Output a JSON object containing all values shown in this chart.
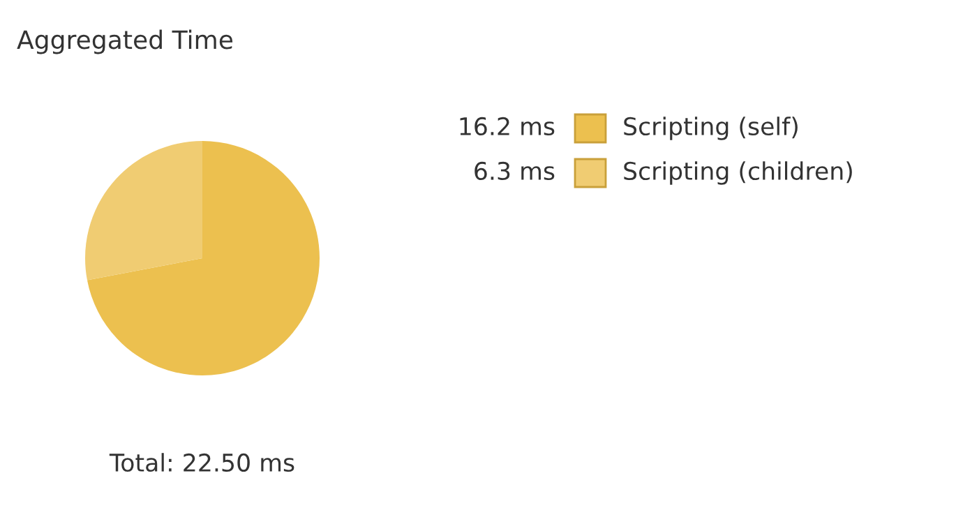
{
  "chart_data": {
    "type": "pie",
    "title": "Aggregated Time",
    "categories": [
      "Scripting (self)",
      "Scripting (children)"
    ],
    "values": [
      16.2,
      6.3
    ],
    "value_labels": [
      "16.2 ms",
      "6.3 ms"
    ],
    "colors": [
      "#ecc04f",
      "#f0cc72"
    ],
    "legend": "right",
    "annotations": [
      "Total: 22.50 ms"
    ]
  }
}
